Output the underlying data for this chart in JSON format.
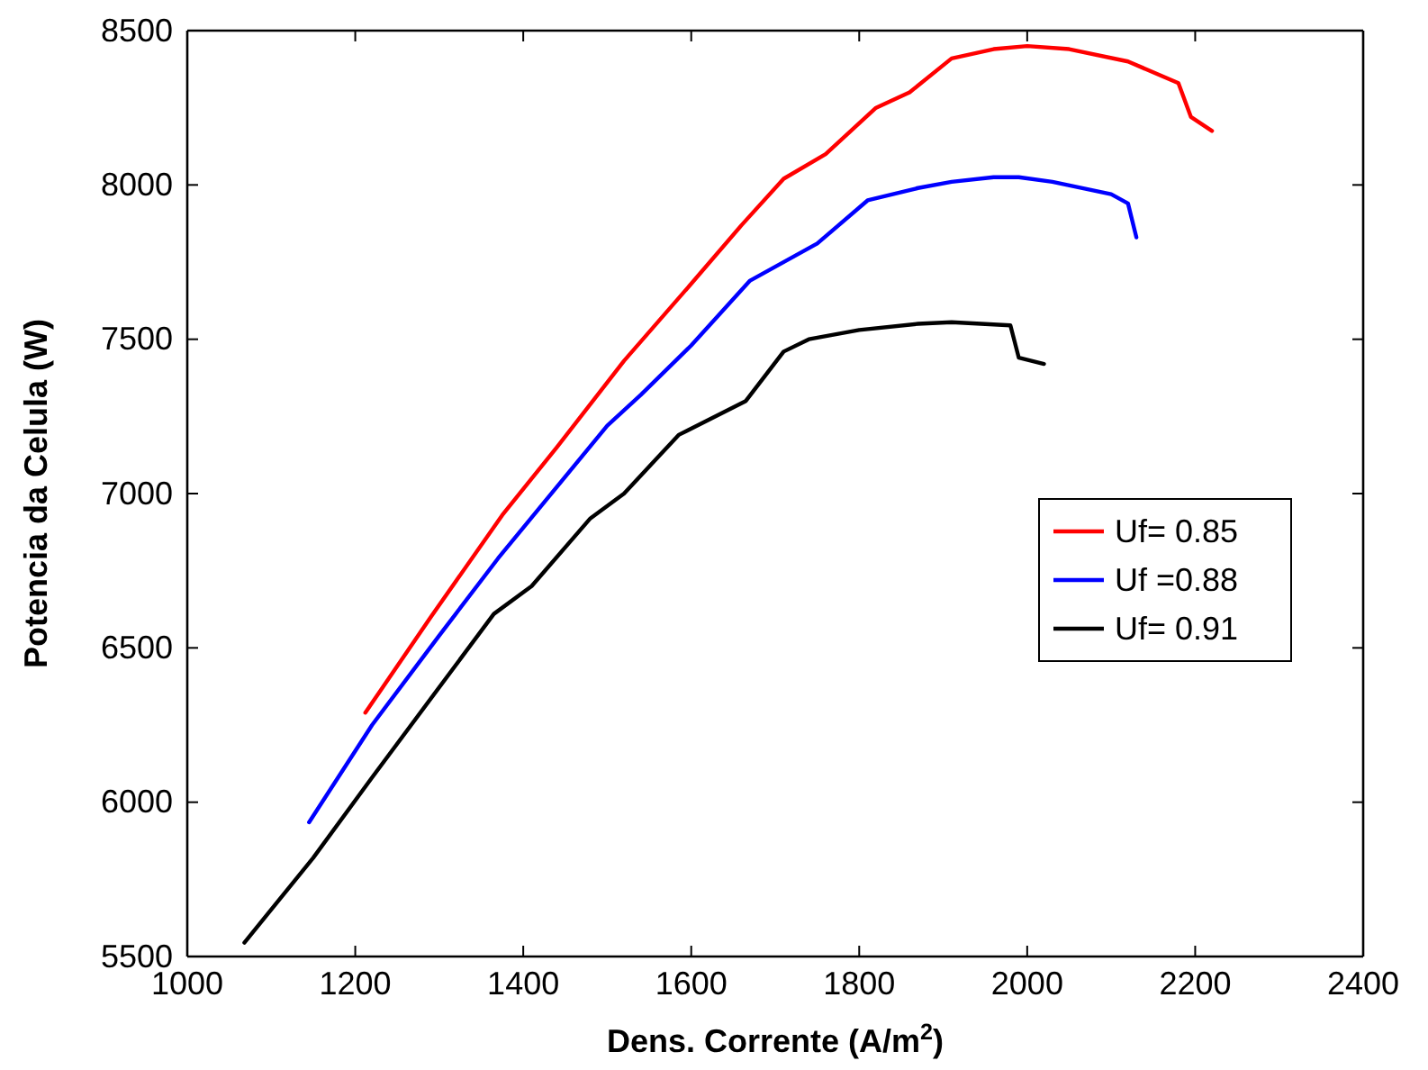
{
  "chart_data": {
    "type": "line",
    "xlabel": "Dens. Corrente (A/m$^{2}$)",
    "ylabel": "Potencia da Celula (W)",
    "xlim": [
      1000,
      2400
    ],
    "xticks": [
      1000,
      1200,
      1400,
      1600,
      1800,
      2000,
      2200,
      2400
    ],
    "ylim": [
      5500,
      8500
    ],
    "yticks": [
      5500,
      6000,
      6500,
      7000,
      7500,
      8000,
      8500
    ],
    "grid": false,
    "legend": "right",
    "marker": "none",
    "line_style": "solid",
    "series": [
      {
        "name": "Uf= 0.85",
        "color": "#ff0000",
        "x": [
          1212,
          1290,
          1375,
          1440,
          1520,
          1600,
          1660,
          1710,
          1760,
          1820,
          1860,
          1910,
          1960,
          2000,
          2050,
          2120,
          2180,
          2195,
          2220
        ],
        "values": [
          6290,
          6600,
          6930,
          7150,
          7430,
          7680,
          7870,
          8020,
          8100,
          8250,
          8300,
          8410,
          8440,
          8450,
          8440,
          8400,
          8330,
          8220,
          8175
        ]
      },
      {
        "name": "Uf =0.88",
        "color": "#0000ff",
        "x": [
          1145,
          1220,
          1300,
          1370,
          1500,
          1540,
          1600,
          1670,
          1750,
          1810,
          1870,
          1910,
          1960,
          1990,
          2030,
          2100,
          2120,
          2130
        ],
        "values": [
          5935,
          6250,
          6540,
          6790,
          7220,
          7320,
          7480,
          7690,
          7810,
          7950,
          7990,
          8010,
          8025,
          8025,
          8010,
          7970,
          7940,
          7830
        ]
      },
      {
        "name": "Uf= 0.91",
        "color": "#000000",
        "x": [
          1068,
          1150,
          1220,
          1365,
          1410,
          1480,
          1520,
          1585,
          1665,
          1710,
          1740,
          1800,
          1870,
          1910,
          1980,
          1990,
          2020
        ],
        "values": [
          5545,
          5820,
          6080,
          6610,
          6700,
          6920,
          7000,
          7190,
          7300,
          7460,
          7500,
          7530,
          7550,
          7555,
          7545,
          7440,
          7420
        ]
      }
    ]
  }
}
